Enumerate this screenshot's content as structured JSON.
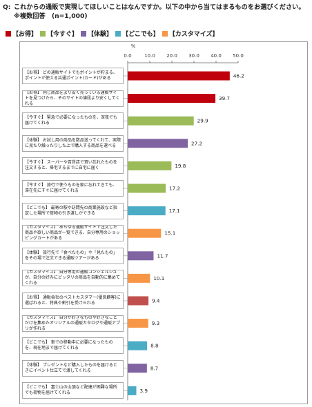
{
  "question": {
    "prefix": "Q:",
    "text": "これからの通販で実現してほしいことはなんですか。以下の中から当てはまるものをお選びください。※複数回答　(n=1,000)"
  },
  "legend": [
    {
      "name": "【お得】",
      "color": "#c0000c"
    },
    {
      "name": "【今すぐ】",
      "color": "#9bbb59"
    },
    {
      "name": "【体験】",
      "color": "#8064a2"
    },
    {
      "name": "【どこでも】",
      "color": "#4bacc6"
    },
    {
      "name": "【カスタマイズ】",
      "color": "#f79646"
    }
  ],
  "chart_data": {
    "type": "bar",
    "orientation": "horizontal",
    "unit": "%",
    "xlim": [
      0,
      50
    ],
    "ticks": [
      "0.0",
      "10.0",
      "20.0",
      "30.0",
      "40.0",
      "50.0"
    ],
    "categories": [
      "【お得】 どの通販サイトでもポイントが貯まる、ポイントが使える共通ポイント(カード)がある",
      "【お得】 同じ商品をより安く売っている通販サイトを見つけたら、そのサイトの値段より安くしてくれる",
      "【今すぐ】 緊急で必要になったものを、深夜でも届けてくれる",
      "【体験】 お試し用の商品を数品送ってくれて、実際に見たり触ったりした上で購入する商品を選べる",
      "【今すぐ】 スーパーや百貨店で買い忘れたものを注文すると、帰宅するまでに自宅に届く",
      "【今すぐ】 旅行で使うものを家に忘れてきても、滞在先にすぐに届けてくれる",
      "【どこでも】 最寄の駅や訪問先の商業施設など指定した場所で荷物の引き渡しができる",
      "【カスタマイズ】 あらゆる通販サイトで注文した商品や欲しい商品が一覧できる、自分専用のショッピングカートがある",
      "【体験】 旅行先で「食べたもの」や「見たもの」をその場で注文できる通販ツアーがある",
      "【カスタマイズ】 自分専用の通販コンシェルジュが、自分の好みにピッタリの商品を自動的に集めてくれる",
      "【お得】 通販会社のベストカスタマー(優良顧客)に選ばれると、特典や割引を受けられる",
      "【カスタマイズ】 自分が好きなものや好きなことだけを集めたオリジナルの通販カタログや通販アプリが作れる",
      "【どこでも】 車での移動中に必要になったものを、現在地まで届けてくれる",
      "【体験】 プレゼントなど購入したものを届けるときにイベント仕立てで渡してくれる",
      "【どこでも】 富士山の山頂など配達が困難な場所でも荷物を届けてくれる"
    ],
    "values": [
      46.2,
      39.7,
      29.9,
      27.2,
      19.8,
      17.2,
      17.1,
      15.1,
      11.7,
      10.1,
      9.4,
      9.3,
      8.8,
      8.7,
      3.9
    ],
    "value_labels": [
      "46.2",
      "39.7",
      "29.9",
      "27.2",
      "19.8",
      "17.2",
      "17.1",
      "15.1",
      "11.7",
      "10.1",
      "9.4",
      "9.3",
      "8.8",
      "8.7",
      "3.9"
    ],
    "groups": [
      "お得",
      "お得",
      "今すぐ",
      "体験",
      "今すぐ",
      "今すぐ",
      "どこでも",
      "カスタマイズ",
      "体験",
      "カスタマイズ",
      "お得",
      "カスタマイズ",
      "どこでも",
      "体験",
      "どこでも"
    ],
    "bar_colors": [
      "#c0000c",
      "#c0000c",
      "#9bbb59",
      "#8064a2",
      "#9bbb59",
      "#9bbb59",
      "#4bacc6",
      "#f79646",
      "#8064a2",
      "#f79646",
      "#c0504d",
      "#f79646",
      "#4bacc6",
      "#8064a2",
      "#4bacc6"
    ],
    "grid": false
  }
}
